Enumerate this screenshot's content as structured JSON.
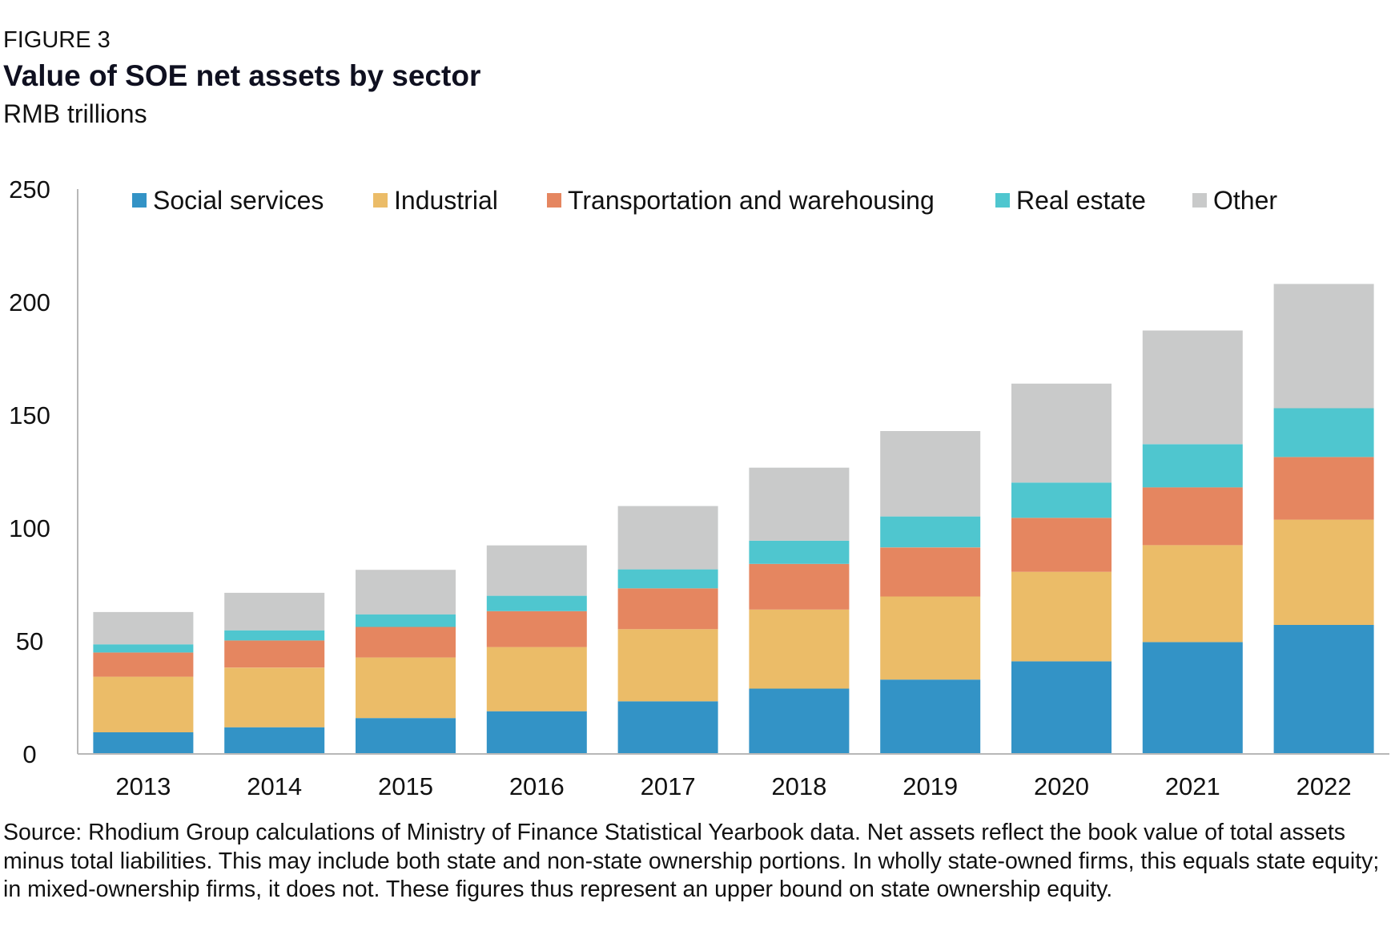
{
  "figure_label": "FIGURE 3",
  "title": "Value of SOE net assets by sector",
  "subtitle": "RMB trillions",
  "source": "Source: Rhodium Group calculations of Ministry of Finance Statistical Yearbook data. Net assets reflect the book value of total assets minus total liabilities. This may include both state and non-state ownership portions. In wholly state-owned firms, this equals state equity; in mixed-ownership firms, it does not. These figures thus represent an upper bound on state ownership equity.",
  "chart_data": {
    "type": "bar",
    "stacked": true,
    "title": "Value of SOE net assets by sector",
    "subtitle": "RMB trillions",
    "xlabel": "",
    "ylabel": "",
    "ylim": [
      0,
      250
    ],
    "yticks": [
      0,
      50,
      100,
      150,
      200,
      250
    ],
    "grid": false,
    "legend_position": "top",
    "categories": [
      "2013",
      "2014",
      "2015",
      "2016",
      "2017",
      "2018",
      "2019",
      "2020",
      "2021",
      "2022"
    ],
    "series": [
      {
        "name": "Social services",
        "color": "#3393c6",
        "values": [
          9.6,
          11.8,
          15.9,
          18.9,
          23.3,
          28.9,
          32.9,
          41.0,
          49.5,
          57.1
        ]
      },
      {
        "name": "Industrial",
        "color": "#ebbc68",
        "values": [
          24.6,
          26.4,
          26.8,
          28.4,
          31.9,
          35.0,
          36.8,
          39.6,
          42.9,
          46.6
        ]
      },
      {
        "name": "Transportation and warehousing",
        "color": "#e58660",
        "values": [
          10.7,
          12.0,
          13.5,
          15.9,
          18.1,
          20.2,
          21.7,
          23.9,
          25.6,
          27.7
        ]
      },
      {
        "name": "Real estate",
        "color": "#4fc6cf",
        "values": [
          3.6,
          4.5,
          5.6,
          6.8,
          8.4,
          10.3,
          13.7,
          15.6,
          19.1,
          21.6
        ]
      },
      {
        "name": "Other",
        "color": "#c9caca",
        "values": [
          14.3,
          16.6,
          19.7,
          22.3,
          28.0,
          32.3,
          37.8,
          43.8,
          50.3,
          55.0
        ]
      }
    ]
  }
}
